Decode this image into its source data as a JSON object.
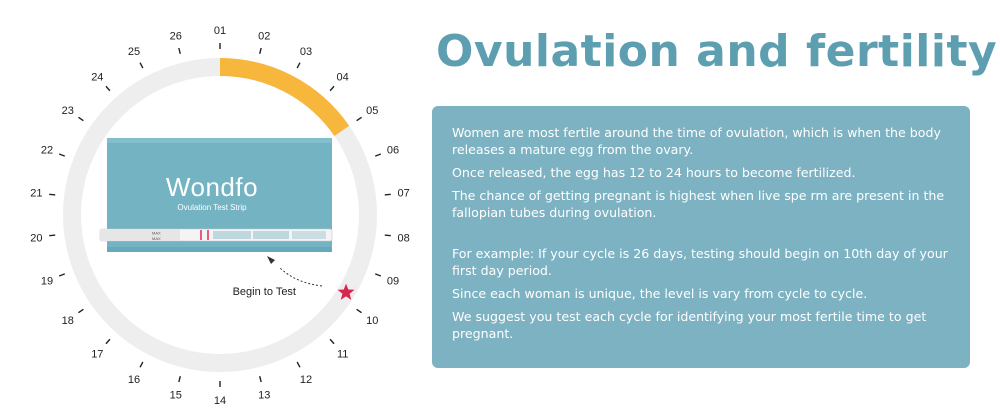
{
  "title": "Ovulation and fertility",
  "days": [
    "01",
    "02",
    "03",
    "04",
    "05",
    "06",
    "07",
    "08",
    "09",
    "10",
    "11",
    "12",
    "13",
    "14",
    "15",
    "16",
    "17",
    "18",
    "19",
    "20",
    "21",
    "22",
    "23",
    "24",
    "25",
    "26"
  ],
  "highlight": {
    "start_day": 1,
    "end_day": 5,
    "color": "#f6b73c"
  },
  "ring_color": "#eeeeee",
  "star_color": "#d7264f",
  "begin_label": "Begin to Test",
  "begin_day": 10,
  "package": {
    "brand": "Wondfo",
    "subtitle": "Ovulation Test Strip",
    "color": "#73b3c2",
    "strip_max_1": "MAX",
    "strip_max_2": "MAX"
  },
  "paragraphs": [
    "Women are most fertile around the time of ovulation, which is when the body releases a mature egg from the ovary.",
    "Once released, the egg has 12 to 24 hours to become fertilized.",
    "The chance of getting pregnant is highest when live spe rm are present in the fallopian tubes during ovulation.",
    "For example: If your cycle is 26 days, testing should begin on 10th day of your first day period.",
    "Since each woman is unique, the level is vary from cycle to cycle.",
    "We suggest you test each cycle for identifying your most fertile time to get pregnant."
  ]
}
